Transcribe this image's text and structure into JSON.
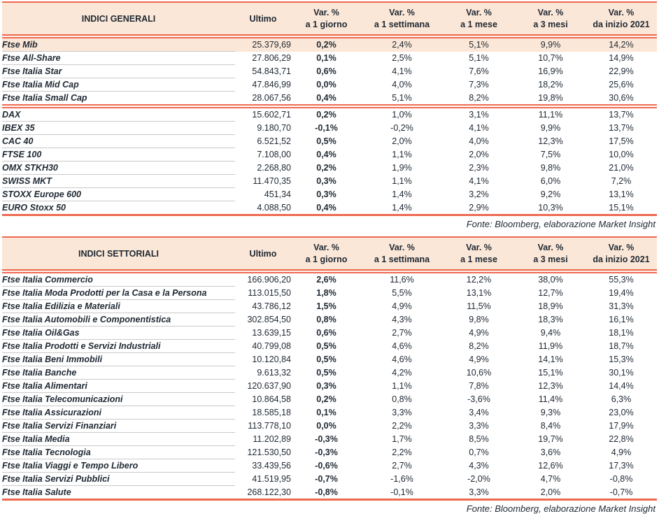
{
  "colors": {
    "accent_orange": "#ee6a51",
    "header_peach": "#fbe7d7",
    "text_dark": "#1e2833",
    "row_separator_gray": "#c9c9c9"
  },
  "tables": [
    {
      "title": "INDICI GENERALI",
      "ultimo_label": "Ultimo",
      "var_headers": [
        {
          "l1": "Var. %",
          "l2": "a 1 giorno"
        },
        {
          "l1": "Var. %",
          "l2": "a 1 settimana"
        },
        {
          "l1": "Var. %",
          "l2": "a 1 mese"
        },
        {
          "l1": "Var. %",
          "l2": "a 3 mesi"
        },
        {
          "l1": "Var. %",
          "l2": "da inizio 2021"
        }
      ],
      "sections": [
        {
          "rows": [
            {
              "name": "Ftse Mib",
              "ultimo": "25.379,69",
              "d1": "0,2%",
              "w1": "2,4%",
              "m1": "5,1%",
              "m3": "9,9%",
              "ytd": "14,2%",
              "highlight": true
            },
            {
              "name": "Ftse All-Share",
              "ultimo": "27.806,29",
              "d1": "0,1%",
              "w1": "2,5%",
              "m1": "5,1%",
              "m3": "10,7%",
              "ytd": "14,9%"
            },
            {
              "name": "Ftse Italia Star",
              "ultimo": "54.843,71",
              "d1": "0,6%",
              "w1": "4,1%",
              "m1": "7,6%",
              "m3": "16,9%",
              "ytd": "22,9%"
            },
            {
              "name": "Ftse Italia Mid Cap",
              "ultimo": "47.846,99",
              "d1": "0,0%",
              "w1": "4,0%",
              "m1": "7,3%",
              "m3": "18,2%",
              "ytd": "25,6%"
            },
            {
              "name": "Ftse Italia Small Cap",
              "ultimo": "28.067,56",
              "d1": "0,4%",
              "w1": "5,1%",
              "m1": "8,2%",
              "m3": "19,8%",
              "ytd": "30,6%"
            }
          ]
        },
        {
          "rows": [
            {
              "name": "DAX",
              "ultimo": "15.602,71",
              "d1": "0,2%",
              "w1": "1,0%",
              "m1": "3,1%",
              "m3": "11,1%",
              "ytd": "13,7%"
            },
            {
              "name": "IBEX 35",
              "ultimo": "9.180,70",
              "d1": "-0,1%",
              "w1": "-0,2%",
              "m1": "4,1%",
              "m3": "9,9%",
              "ytd": "13,7%"
            },
            {
              "name": "CAC 40",
              "ultimo": "6.521,52",
              "d1": "0,5%",
              "w1": "2,0%",
              "m1": "4,0%",
              "m3": "12,3%",
              "ytd": "17,5%"
            },
            {
              "name": "FTSE 100",
              "ultimo": "7.108,00",
              "d1": "0,4%",
              "w1": "1,1%",
              "m1": "2,0%",
              "m3": "7,5%",
              "ytd": "10,0%"
            },
            {
              "name": "OMX STKH30",
              "ultimo": "2.268,80",
              "d1": "0,2%",
              "w1": "1,9%",
              "m1": "2,3%",
              "m3": "9,8%",
              "ytd": "21,0%"
            },
            {
              "name": "SWISS MKT",
              "ultimo": "11.470,35",
              "d1": "0,3%",
              "w1": "1,1%",
              "m1": "4,1%",
              "m3": "6,0%",
              "ytd": "7,2%"
            },
            {
              "name": "STOXX Europe 600",
              "ultimo": "451,34",
              "d1": "0,3%",
              "w1": "1,4%",
              "m1": "3,2%",
              "m3": "9,2%",
              "ytd": "13,1%"
            },
            {
              "name": "EURO Stoxx 50",
              "ultimo": "4.088,50",
              "d1": "0,4%",
              "w1": "1,4%",
              "m1": "2,9%",
              "m3": "10,3%",
              "ytd": "15,1%"
            }
          ]
        }
      ],
      "fonte": "Fonte: Bloomberg, elaborazione Market Insight"
    },
    {
      "title": "INDICI SETTORIALI",
      "ultimo_label": "Ultimo",
      "var_headers": [
        {
          "l1": "Var. %",
          "l2": "a 1 giorno"
        },
        {
          "l1": "Var. %",
          "l2": "a 1 settimana"
        },
        {
          "l1": "Var. %",
          "l2": "a 1 mese"
        },
        {
          "l1": "Var. %",
          "l2": "a 3 mesi"
        },
        {
          "l1": "Var. %",
          "l2": "da inizio 2021"
        }
      ],
      "sections": [
        {
          "rows": [
            {
              "name": "Ftse Italia Commercio",
              "ultimo": "166.906,20",
              "d1": "2,6%",
              "w1": "11,6%",
              "m1": "12,2%",
              "m3": "38,0%",
              "ytd": "55,3%"
            },
            {
              "name": "Ftse Italia Moda Prodotti per la Casa e la Persona",
              "ultimo": "113.015,50",
              "d1": "1,8%",
              "w1": "5,5%",
              "m1": "13,1%",
              "m3": "12,7%",
              "ytd": "19,4%"
            },
            {
              "name": "Ftse Italia Edilizia e Materiali",
              "ultimo": "43.786,12",
              "d1": "1,5%",
              "w1": "4,9%",
              "m1": "11,5%",
              "m3": "18,9%",
              "ytd": "31,3%"
            },
            {
              "name": "Ftse Italia Automobili e Componentistica",
              "ultimo": "302.854,50",
              "d1": "0,8%",
              "w1": "4,3%",
              "m1": "9,8%",
              "m3": "18,3%",
              "ytd": "16,1%"
            },
            {
              "name": "Ftse Italia Oil&Gas",
              "ultimo": "13.639,15",
              "d1": "0,6%",
              "w1": "2,7%",
              "m1": "4,9%",
              "m3": "9,4%",
              "ytd": "18,1%"
            },
            {
              "name": "Ftse Italia Prodotti e Servizi Industriali",
              "ultimo": "40.799,08",
              "d1": "0,5%",
              "w1": "4,6%",
              "m1": "8,2%",
              "m3": "11,9%",
              "ytd": "18,7%"
            },
            {
              "name": "Ftse Italia Beni Immobili",
              "ultimo": "10.120,84",
              "d1": "0,5%",
              "w1": "4,6%",
              "m1": "4,9%",
              "m3": "14,1%",
              "ytd": "15,3%"
            },
            {
              "name": "Ftse Italia Banche",
              "ultimo": "9.613,32",
              "d1": "0,5%",
              "w1": "4,2%",
              "m1": "10,6%",
              "m3": "15,1%",
              "ytd": "30,1%"
            },
            {
              "name": "Ftse Italia Alimentari",
              "ultimo": "120.637,90",
              "d1": "0,3%",
              "w1": "1,1%",
              "m1": "7,8%",
              "m3": "12,3%",
              "ytd": "14,4%"
            },
            {
              "name": "Ftse Italia Telecomunicazioni",
              "ultimo": "10.864,58",
              "d1": "0,2%",
              "w1": "0,8%",
              "m1": "-3,6%",
              "m3": "11,4%",
              "ytd": "6,3%"
            },
            {
              "name": "Ftse Italia Assicurazioni",
              "ultimo": "18.585,18",
              "d1": "0,1%",
              "w1": "3,3%",
              "m1": "3,4%",
              "m3": "9,3%",
              "ytd": "23,0%"
            },
            {
              "name": "Ftse Italia Servizi Finanziari",
              "ultimo": "113.778,10",
              "d1": "0,0%",
              "w1": "2,2%",
              "m1": "3,3%",
              "m3": "8,4%",
              "ytd": "17,9%"
            },
            {
              "name": "Ftse Italia Media",
              "ultimo": "11.202,89",
              "d1": "-0,3%",
              "w1": "1,7%",
              "m1": "8,5%",
              "m3": "19,7%",
              "ytd": "22,8%"
            },
            {
              "name": "Ftse Italia Tecnologia",
              "ultimo": "121.530,50",
              "d1": "-0,3%",
              "w1": "2,2%",
              "m1": "0,7%",
              "m3": "3,6%",
              "ytd": "4,9%"
            },
            {
              "name": "Ftse Italia Viaggi e Tempo Libero",
              "ultimo": "33.439,56",
              "d1": "-0,6%",
              "w1": "2,7%",
              "m1": "4,3%",
              "m3": "12,6%",
              "ytd": "17,3%"
            },
            {
              "name": "Ftse Italia Servizi Pubblici",
              "ultimo": "41.519,95",
              "d1": "-0,7%",
              "w1": "-1,6%",
              "m1": "-2,0%",
              "m3": "4,7%",
              "ytd": "-0,8%"
            },
            {
              "name": "Ftse Italia Salute",
              "ultimo": "268.122,30",
              "d1": "-0,8%",
              "w1": "-0,1%",
              "m1": "3,3%",
              "m3": "2,0%",
              "ytd": "-0,7%"
            }
          ]
        }
      ],
      "fonte": "Fonte: Bloomberg, elaborazione Market Insight"
    }
  ]
}
